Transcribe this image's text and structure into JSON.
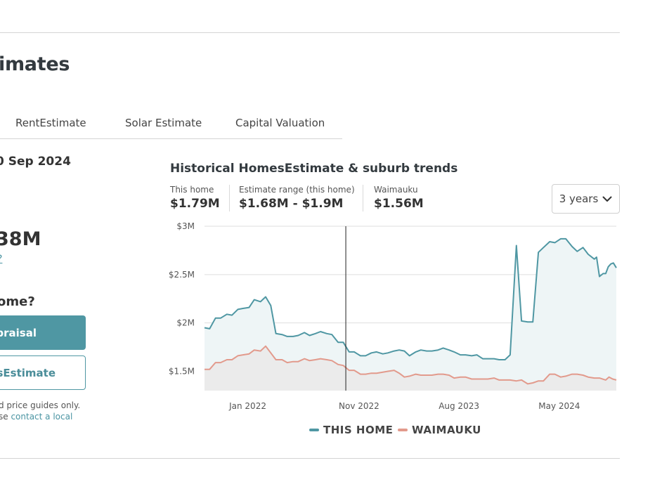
{
  "page": {
    "title": "imates"
  },
  "tabs": [
    "RentEstimate",
    "Solar Estimate",
    "Capital Valuation"
  ],
  "estimate": {
    "as_of": "0 Sep 2024",
    "value": "38M",
    "link": "?",
    "question": "ome?",
    "primary_button": "praisal",
    "secondary_button": "esEstimate",
    "disclaimer_line1": "d price guides only.",
    "disclaimer_line2_prefix": "se ",
    "disclaimer_link": "contact a local"
  },
  "chart_header": {
    "title": "Historical HomesEstimate & suburb trends",
    "stats": [
      {
        "label": "This home",
        "value": "$1.79M"
      },
      {
        "label": "Estimate range (this home)",
        "value": "$1.68M - $1.9M"
      },
      {
        "label": "Waimauku",
        "value": "$1.56M"
      }
    ],
    "range_select": "3 years",
    "range_icon": "chevron-down-icon"
  },
  "chart_data": {
    "type": "area",
    "x_start": "2021-09",
    "x_end": "2024-09",
    "x_ticks": [
      {
        "label": "Jan 2022",
        "date": "2022-01"
      },
      {
        "label": "Nov 2022",
        "date": "2022-11"
      },
      {
        "label": "Aug 2023",
        "date": "2023-08"
      },
      {
        "label": "May 2024",
        "date": "2024-05"
      }
    ],
    "y_ticks": [
      {
        "label": "$1.5M",
        "value": 1.5
      },
      {
        "label": "$2M",
        "value": 2.0
      },
      {
        "label": "$2.5M",
        "value": 2.5
      },
      {
        "label": "$3M",
        "value": 3.0
      }
    ],
    "ylim": [
      1.3,
      3.0
    ],
    "y_unit": "$M",
    "grid": true,
    "legend_position": "bottom",
    "marker_date": "2022-09-22",
    "series": [
      {
        "name": "THIS HOME",
        "color": "#4f97a3",
        "fill": "#eef5f6",
        "points": [
          [
            "2021-09-01",
            1.95
          ],
          [
            "2021-09-15",
            1.94
          ],
          [
            "2021-10-01",
            2.05
          ],
          [
            "2021-10-15",
            2.05
          ],
          [
            "2021-11-01",
            2.09
          ],
          [
            "2021-11-15",
            2.08
          ],
          [
            "2021-12-01",
            2.14
          ],
          [
            "2021-12-15",
            2.15
          ],
          [
            "2022-01-01",
            2.16
          ],
          [
            "2022-01-15",
            2.24
          ],
          [
            "2022-02-01",
            2.22
          ],
          [
            "2022-02-15",
            2.27
          ],
          [
            "2022-03-01",
            2.18
          ],
          [
            "2022-03-15",
            1.89
          ],
          [
            "2022-04-01",
            1.88
          ],
          [
            "2022-04-15",
            1.86
          ],
          [
            "2022-05-01",
            1.86
          ],
          [
            "2022-05-15",
            1.87
          ],
          [
            "2022-06-01",
            1.9
          ],
          [
            "2022-06-15",
            1.87
          ],
          [
            "2022-07-01",
            1.89
          ],
          [
            "2022-07-15",
            1.91
          ],
          [
            "2022-08-01",
            1.89
          ],
          [
            "2022-08-15",
            1.88
          ],
          [
            "2022-09-01",
            1.8
          ],
          [
            "2022-09-15",
            1.8
          ],
          [
            "2022-10-01",
            1.7
          ],
          [
            "2022-10-15",
            1.7
          ],
          [
            "2022-11-01",
            1.66
          ],
          [
            "2022-11-15",
            1.66
          ],
          [
            "2022-12-01",
            1.69
          ],
          [
            "2022-12-15",
            1.7
          ],
          [
            "2023-01-01",
            1.68
          ],
          [
            "2023-01-15",
            1.69
          ],
          [
            "2023-02-01",
            1.71
          ],
          [
            "2023-02-15",
            1.72
          ],
          [
            "2023-03-01",
            1.71
          ],
          [
            "2023-03-15",
            1.66
          ],
          [
            "2023-04-01",
            1.7
          ],
          [
            "2023-04-15",
            1.72
          ],
          [
            "2023-05-01",
            1.71
          ],
          [
            "2023-05-15",
            1.71
          ],
          [
            "2023-06-01",
            1.72
          ],
          [
            "2023-06-15",
            1.74
          ],
          [
            "2023-07-01",
            1.72
          ],
          [
            "2023-07-15",
            1.7
          ],
          [
            "2023-08-01",
            1.67
          ],
          [
            "2023-08-15",
            1.67
          ],
          [
            "2023-09-01",
            1.66
          ],
          [
            "2023-09-15",
            1.67
          ],
          [
            "2023-10-01",
            1.63
          ],
          [
            "2023-10-15",
            1.63
          ],
          [
            "2023-11-01",
            1.63
          ],
          [
            "2023-11-15",
            1.62
          ],
          [
            "2023-12-01",
            1.62
          ],
          [
            "2023-12-15",
            1.67
          ],
          [
            "2024-01-01",
            2.8
          ],
          [
            "2024-01-15",
            2.02
          ],
          [
            "2024-02-01",
            2.01
          ],
          [
            "2024-02-15",
            2.01
          ],
          [
            "2024-03-01",
            2.73
          ],
          [
            "2024-03-15",
            2.78
          ],
          [
            "2024-04-01",
            2.84
          ],
          [
            "2024-04-15",
            2.83
          ],
          [
            "2024-05-01",
            2.87
          ],
          [
            "2024-05-15",
            2.87
          ],
          [
            "2024-06-01",
            2.79
          ],
          [
            "2024-06-15",
            2.74
          ],
          [
            "2024-07-01",
            2.78
          ],
          [
            "2024-07-15",
            2.71
          ],
          [
            "2024-08-01",
            2.66
          ],
          [
            "2024-08-07",
            2.68
          ],
          [
            "2024-08-15",
            2.48
          ],
          [
            "2024-08-25",
            2.51
          ],
          [
            "2024-09-01",
            2.51
          ],
          [
            "2024-09-08",
            2.58
          ],
          [
            "2024-09-15",
            2.61
          ],
          [
            "2024-09-22",
            2.62
          ],
          [
            "2024-09-30",
            2.57
          ]
        ]
      },
      {
        "name": "WAIMAUKU",
        "color": "#e29a8c",
        "fill": "#ebebeb",
        "points": [
          [
            "2021-09-01",
            1.52
          ],
          [
            "2021-09-15",
            1.52
          ],
          [
            "2021-10-01",
            1.59
          ],
          [
            "2021-10-15",
            1.59
          ],
          [
            "2021-11-01",
            1.62
          ],
          [
            "2021-11-15",
            1.62
          ],
          [
            "2021-12-01",
            1.66
          ],
          [
            "2021-12-15",
            1.67
          ],
          [
            "2022-01-01",
            1.68
          ],
          [
            "2022-01-15",
            1.72
          ],
          [
            "2022-02-01",
            1.71
          ],
          [
            "2022-02-15",
            1.76
          ],
          [
            "2022-03-01",
            1.69
          ],
          [
            "2022-03-15",
            1.62
          ],
          [
            "2022-04-01",
            1.62
          ],
          [
            "2022-04-15",
            1.59
          ],
          [
            "2022-05-01",
            1.6
          ],
          [
            "2022-05-15",
            1.6
          ],
          [
            "2022-06-01",
            1.63
          ],
          [
            "2022-06-15",
            1.61
          ],
          [
            "2022-07-01",
            1.62
          ],
          [
            "2022-07-15",
            1.63
          ],
          [
            "2022-08-01",
            1.62
          ],
          [
            "2022-08-15",
            1.61
          ],
          [
            "2022-09-01",
            1.57
          ],
          [
            "2022-09-15",
            1.56
          ],
          [
            "2022-10-01",
            1.51
          ],
          [
            "2022-10-15",
            1.51
          ],
          [
            "2022-11-01",
            1.47
          ],
          [
            "2022-11-15",
            1.47
          ],
          [
            "2022-12-01",
            1.48
          ],
          [
            "2022-12-15",
            1.48
          ],
          [
            "2023-01-01",
            1.49
          ],
          [
            "2023-01-15",
            1.5
          ],
          [
            "2023-02-01",
            1.51
          ],
          [
            "2023-02-15",
            1.48
          ],
          [
            "2023-03-01",
            1.44
          ],
          [
            "2023-03-15",
            1.45
          ],
          [
            "2023-04-01",
            1.47
          ],
          [
            "2023-04-15",
            1.46
          ],
          [
            "2023-05-01",
            1.46
          ],
          [
            "2023-05-15",
            1.46
          ],
          [
            "2023-06-01",
            1.47
          ],
          [
            "2023-06-15",
            1.47
          ],
          [
            "2023-07-01",
            1.46
          ],
          [
            "2023-07-15",
            1.43
          ],
          [
            "2023-08-01",
            1.44
          ],
          [
            "2023-08-15",
            1.44
          ],
          [
            "2023-09-01",
            1.42
          ],
          [
            "2023-09-15",
            1.42
          ],
          [
            "2023-10-01",
            1.42
          ],
          [
            "2023-10-15",
            1.42
          ],
          [
            "2023-11-01",
            1.43
          ],
          [
            "2023-11-15",
            1.41
          ],
          [
            "2023-12-01",
            1.41
          ],
          [
            "2023-12-15",
            1.41
          ],
          [
            "2024-01-01",
            1.4
          ],
          [
            "2024-01-15",
            1.41
          ],
          [
            "2024-02-01",
            1.37
          ],
          [
            "2024-02-15",
            1.38
          ],
          [
            "2024-03-01",
            1.4
          ],
          [
            "2024-03-15",
            1.4
          ],
          [
            "2024-04-01",
            1.47
          ],
          [
            "2024-04-15",
            1.47
          ],
          [
            "2024-05-01",
            1.44
          ],
          [
            "2024-05-15",
            1.45
          ],
          [
            "2024-06-01",
            1.47
          ],
          [
            "2024-06-15",
            1.47
          ],
          [
            "2024-07-01",
            1.46
          ],
          [
            "2024-07-15",
            1.44
          ],
          [
            "2024-08-01",
            1.43
          ],
          [
            "2024-08-15",
            1.43
          ],
          [
            "2024-09-01",
            1.41
          ],
          [
            "2024-09-10",
            1.44
          ],
          [
            "2024-09-20",
            1.42
          ],
          [
            "2024-09-30",
            1.41
          ]
        ]
      }
    ]
  }
}
